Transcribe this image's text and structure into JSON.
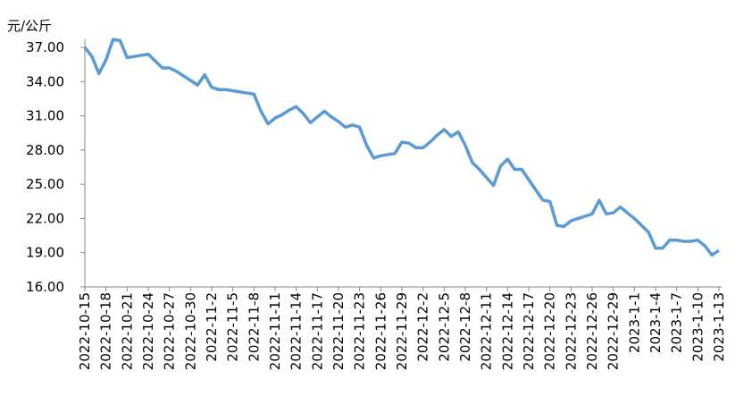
{
  "chart_data": {
    "type": "line",
    "y_label": "元/公斤",
    "categories": [
      "2022-10-15",
      null,
      null,
      "2022-10-18",
      null,
      null,
      "2022-10-21",
      null,
      null,
      "2022-10-24",
      null,
      null,
      "2022-10-27",
      null,
      null,
      "2022-10-30",
      null,
      null,
      "2022-11-2",
      null,
      null,
      "2022-11-5",
      null,
      null,
      "2022-11-8",
      null,
      null,
      "2022-11-11",
      null,
      null,
      "2022-11-14",
      null,
      null,
      "2022-11-17",
      null,
      null,
      "2022-11-20",
      null,
      null,
      "2022-11-23",
      null,
      null,
      "2022-11-26",
      null,
      null,
      "2022-11-29",
      null,
      null,
      "2022-12-2",
      null,
      null,
      "2022-12-5",
      null,
      null,
      "2022-12-8",
      null,
      null,
      "2022-12-11",
      null,
      null,
      "2022-12-14",
      null,
      null,
      "2022-12-17",
      null,
      null,
      "2022-12-20",
      null,
      null,
      "2022-12-23",
      null,
      null,
      "2022-12-26",
      null,
      null,
      "2022-12-29",
      null,
      null,
      "2023-1-1",
      null,
      null,
      "2023-1-4",
      null,
      null,
      "2023-1-7",
      null,
      null,
      "2023-1-10",
      null,
      null,
      "2023-1-13"
    ],
    "values": [
      37.0,
      36.2,
      34.7,
      35.9,
      37.7,
      37.6,
      36.1,
      36.2,
      36.3,
      36.4,
      35.8,
      35.2,
      35.2,
      34.9,
      34.5,
      34.1,
      33.7,
      34.6,
      33.5,
      33.3,
      33.3,
      33.2,
      33.1,
      33.0,
      32.9,
      31.4,
      30.3,
      30.8,
      31.1,
      31.5,
      31.8,
      31.2,
      30.4,
      30.9,
      31.4,
      30.9,
      30.5,
      30.0,
      30.2,
      30.0,
      28.4,
      27.3,
      27.5,
      27.6,
      27.7,
      28.7,
      28.6,
      28.2,
      28.2,
      28.7,
      29.3,
      29.8,
      29.2,
      29.6,
      28.4,
      26.9,
      26.3,
      25.6,
      24.9,
      26.6,
      27.2,
      26.3,
      26.3,
      25.4,
      24.5,
      23.6,
      23.5,
      21.4,
      21.3,
      21.8,
      22.0,
      22.2,
      22.4,
      23.6,
      22.4,
      22.5,
      23.0,
      22.5,
      22.0,
      21.4,
      20.8,
      19.4,
      19.4,
      20.1,
      20.1,
      20.0,
      20.0,
      20.1,
      19.6,
      18.8,
      19.2
    ],
    "color": "#5b9bd5",
    "ylim": [
      16,
      37
    ],
    "yticks": [
      {
        "value": 16,
        "label": "16.00"
      },
      {
        "value": 19,
        "label": "19.00"
      },
      {
        "value": 22,
        "label": "22.00"
      },
      {
        "value": 25,
        "label": "25.00"
      },
      {
        "value": 28,
        "label": "28.00"
      },
      {
        "value": 31,
        "label": "31.00"
      },
      {
        "value": 34,
        "label": "34.00"
      },
      {
        "value": 37,
        "label": "37.00"
      }
    ],
    "grid": false
  }
}
